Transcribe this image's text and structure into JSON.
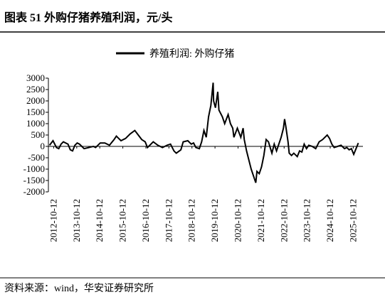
{
  "chart_data": {
    "type": "line",
    "title": "图表 51 外购仔猪养殖利润，元/头",
    "source": "资料来源：wind，华安证券研究所",
    "x": [
      2012.6,
      2012.75,
      2012.9,
      2013.0,
      2013.1,
      2013.2,
      2013.4,
      2013.5,
      2013.6,
      2013.7,
      2013.8,
      2013.9,
      2014.0,
      2014.1,
      2014.3,
      2014.5,
      2014.6,
      2014.8,
      2015.0,
      2015.2,
      2015.4,
      2015.5,
      2015.6,
      2015.7,
      2015.9,
      2016.1,
      2016.3,
      2016.45,
      2016.6,
      2016.75,
      2016.85,
      2017.0,
      2017.1,
      2017.3,
      2017.5,
      2017.7,
      2017.85,
      2018.0,
      2018.1,
      2018.3,
      2018.4,
      2018.6,
      2018.75,
      2018.85,
      2018.95,
      2019.1,
      2019.2,
      2019.3,
      2019.4,
      2019.5,
      2019.6,
      2019.7,
      2019.72,
      2019.8,
      2019.9,
      2019.95,
      2020.1,
      2020.2,
      2020.35,
      2020.45,
      2020.55,
      2020.6,
      2020.75,
      2020.9,
      2021.0,
      2021.05,
      2021.15,
      2021.25,
      2021.35,
      2021.45,
      2021.55,
      2021.6,
      2021.7,
      2021.8,
      2021.9,
      2022.0,
      2022.1,
      2022.25,
      2022.35,
      2022.45,
      2022.55,
      2022.65,
      2022.75,
      2022.8,
      2022.85,
      2022.95,
      2023.0,
      2023.1,
      2023.2,
      2023.35,
      2023.45,
      2023.55,
      2023.65,
      2023.75,
      2023.85,
      2024.0,
      2024.15,
      2024.3,
      2024.45,
      2024.55,
      2024.65,
      2024.75,
      2024.85,
      2024.95,
      2025.1,
      2025.25,
      2025.4,
      2025.5,
      2025.6,
      2025.7,
      2025.8,
      2025.9,
      2026.0
    ],
    "series": [
      {
        "name": "养殖利润: 外购仔猪",
        "color": "#000000",
        "values": [
          50,
          250,
          -50,
          -100,
          100,
          200,
          100,
          -150,
          -200,
          50,
          150,
          100,
          0,
          -100,
          -50,
          0,
          -50,
          150,
          150,
          50,
          300,
          450,
          350,
          250,
          350,
          550,
          700,
          500,
          300,
          200,
          -50,
          100,
          200,
          50,
          -50,
          50,
          100,
          -200,
          -300,
          -150,
          200,
          250,
          100,
          150,
          -50,
          -100,
          200,
          700,
          400,
          1300,
          1800,
          2800,
          2000,
          1700,
          2400,
          1600,
          1300,
          1000,
          1400,
          1000,
          800,
          400,
          800,
          400,
          800,
          300,
          -200,
          -600,
          -1000,
          -1300,
          -1600,
          -1100,
          -1200,
          -900,
          -400,
          300,
          200,
          -300,
          100,
          -200,
          100,
          400,
          800,
          1200,
          900,
          200,
          -300,
          -400,
          -300,
          -450,
          -200,
          -250,
          100,
          -100,
          50,
          0,
          -100,
          200,
          300,
          400,
          500,
          350,
          100,
          -50,
          0,
          50,
          -100,
          -50,
          -150,
          -100,
          -350,
          -100,
          150
        ]
      }
    ],
    "xlim": [
      2012.55,
      2026.2
    ],
    "xticks": [
      {
        "value": 2012.78,
        "label": "2012-10-12"
      },
      {
        "value": 2013.78,
        "label": "2013-10-12"
      },
      {
        "value": 2014.78,
        "label": "2014-10-12"
      },
      {
        "value": 2015.78,
        "label": "2015-10-12"
      },
      {
        "value": 2016.78,
        "label": "2016-10-12"
      },
      {
        "value": 2017.78,
        "label": "2017-10-12"
      },
      {
        "value": 2018.78,
        "label": "2018-10-12"
      },
      {
        "value": 2019.78,
        "label": "2019-10-12"
      },
      {
        "value": 2020.78,
        "label": "2020-10-12"
      },
      {
        "value": 2021.78,
        "label": "2021-10-12"
      },
      {
        "value": 2022.78,
        "label": "2022-10-12"
      },
      {
        "value": 2023.78,
        "label": "2023-10-12"
      },
      {
        "value": 2024.78,
        "label": "2024-10-12"
      },
      {
        "value": 2025.78,
        "label": "2025-10-12"
      }
    ],
    "ylim": [
      -2000,
      3000
    ],
    "yticks": [
      -2000,
      -1500,
      -1000,
      -500,
      0,
      500,
      1000,
      1500,
      2000,
      2500,
      3000
    ],
    "grid": false,
    "legend": "top"
  }
}
